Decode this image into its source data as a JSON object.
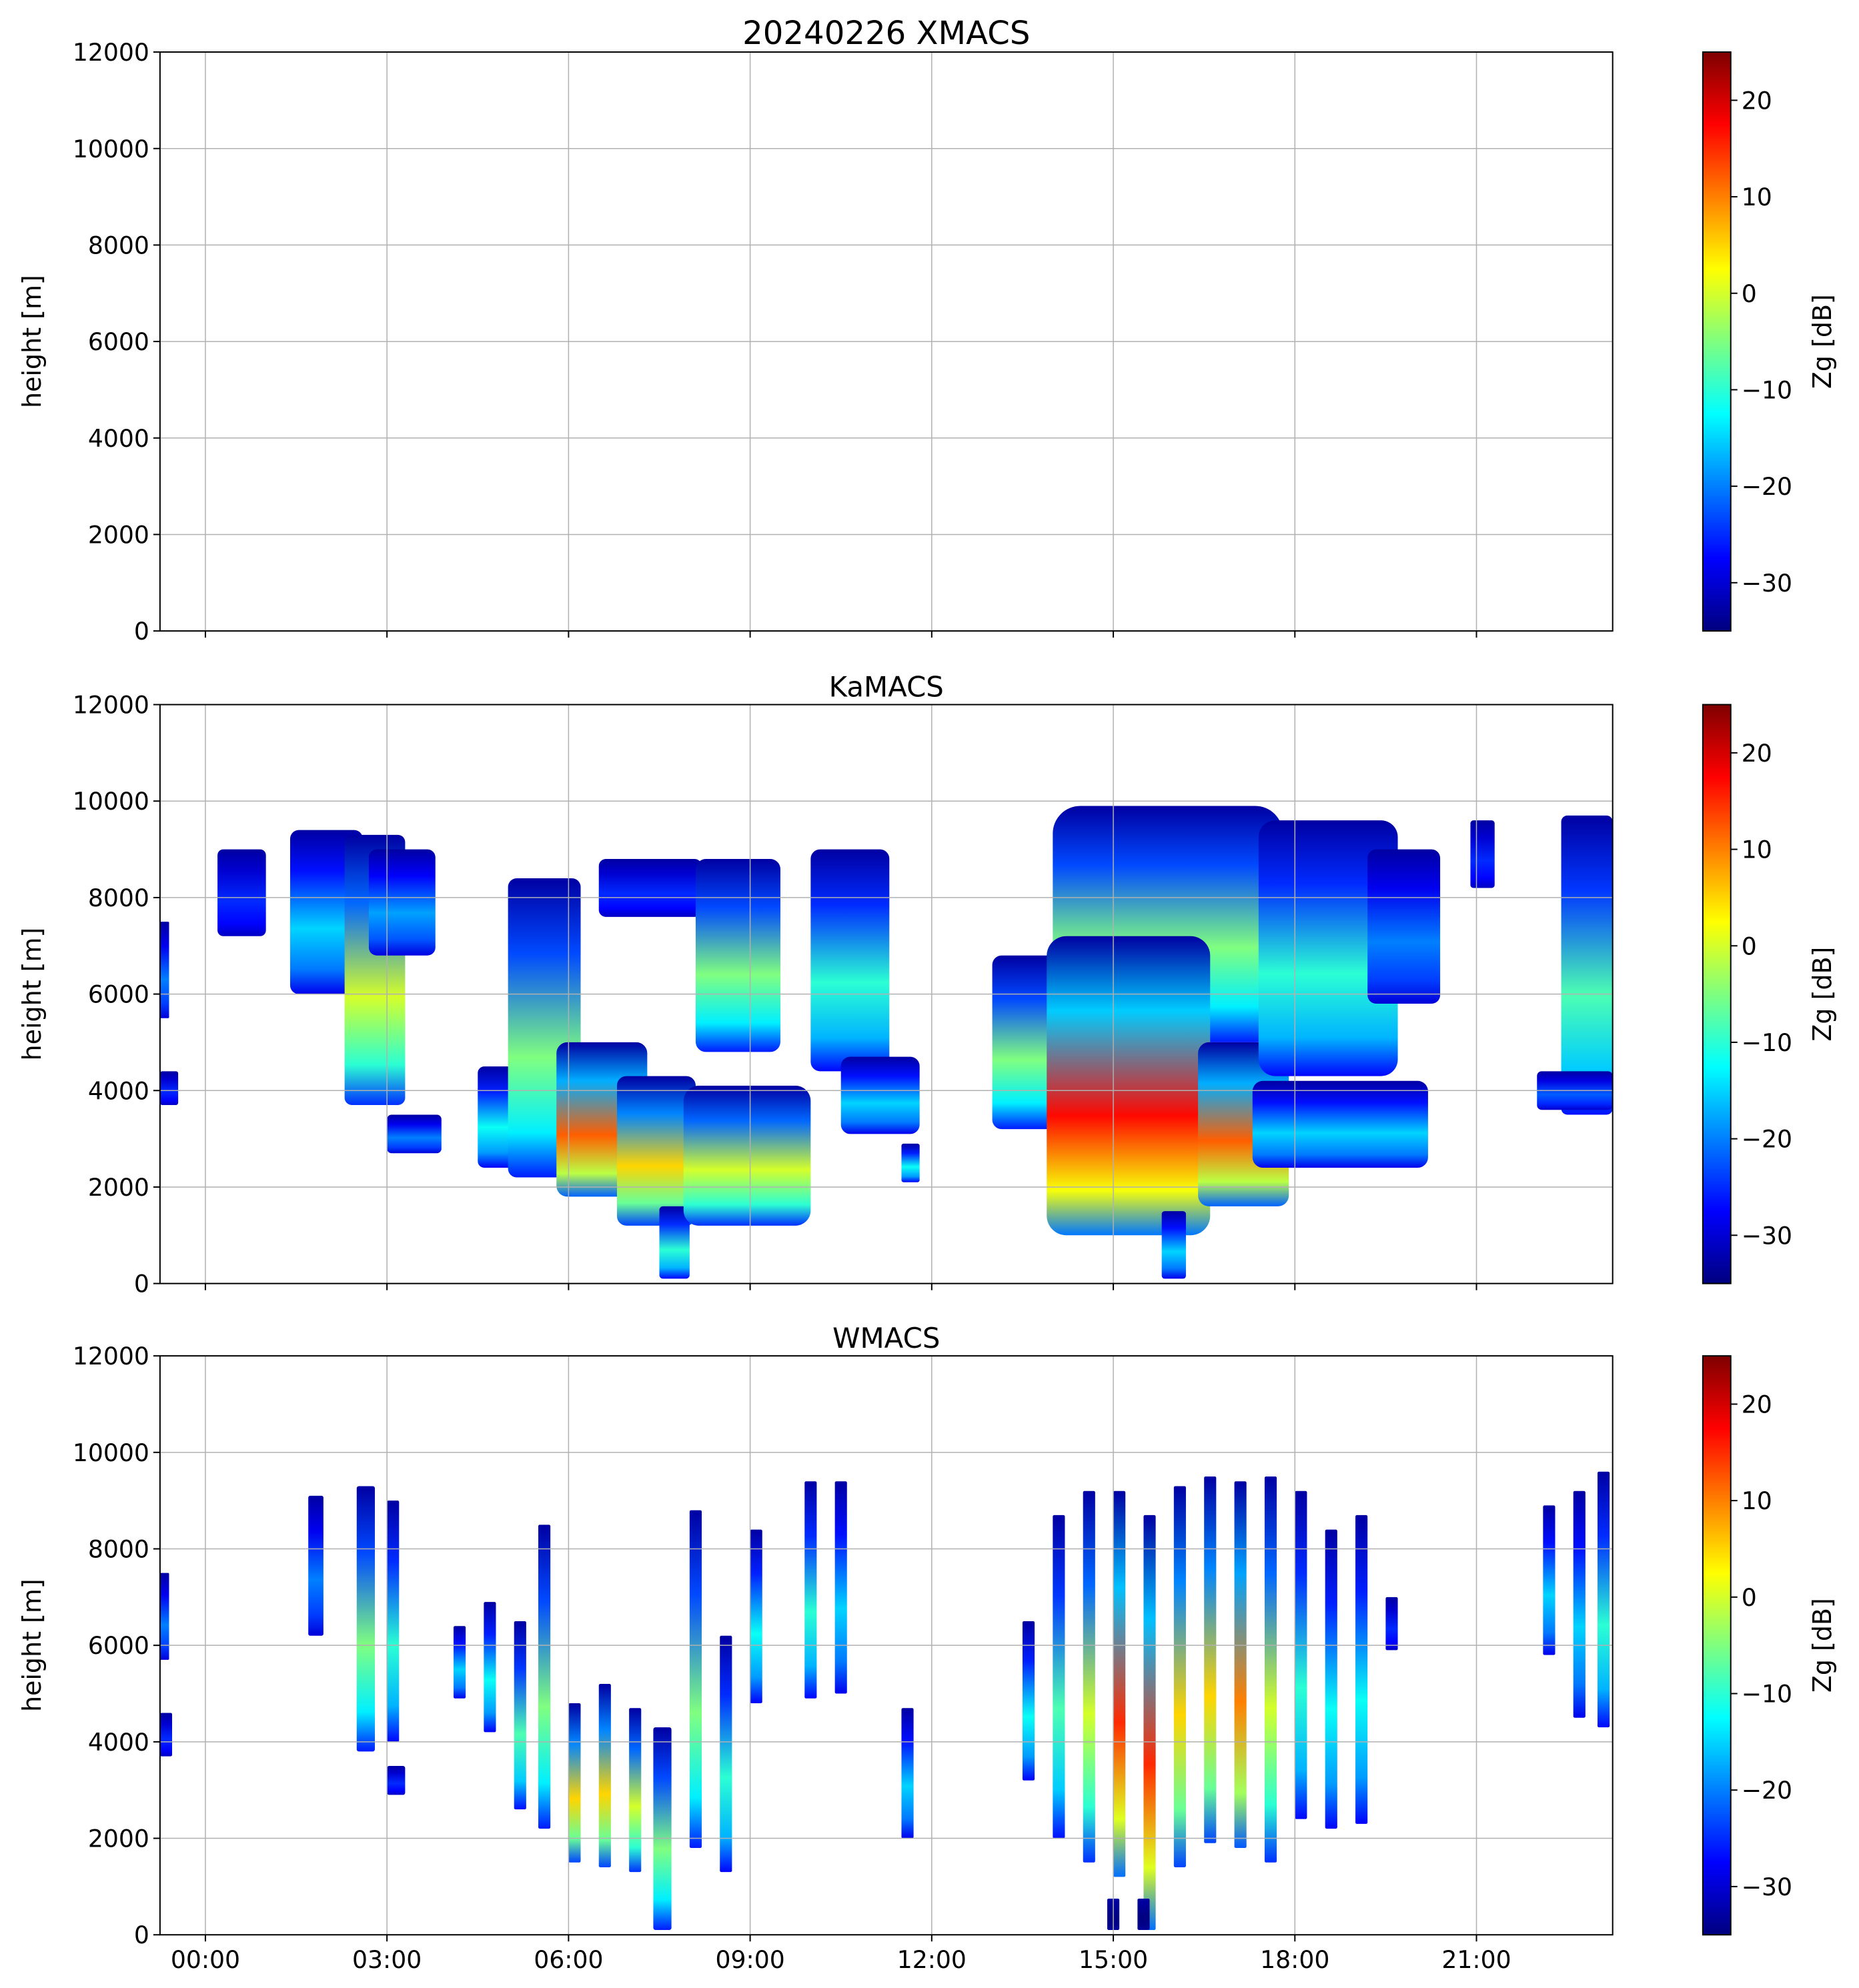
{
  "chart_data": [
    {
      "type": "heatmap",
      "title": "20240226 XMACS",
      "ylabel": "height [m]",
      "ylim": [
        0,
        12000
      ],
      "yticks": [
        0,
        2000,
        4000,
        6000,
        8000,
        10000,
        12000
      ],
      "xlim_hours": [
        -0.75,
        23.25
      ],
      "xticks_hours": [
        0,
        3,
        6,
        9,
        12,
        15,
        18,
        21
      ],
      "xtick_labels": [
        "00:00",
        "03:00",
        "06:00",
        "09:00",
        "12:00",
        "15:00",
        "18:00",
        "21:00"
      ],
      "grid": true,
      "colorbar": {
        "label": "Zg [dB]",
        "range": [
          -35,
          25
        ],
        "ticks": [
          -30,
          -20,
          -10,
          0,
          10,
          20
        ]
      },
      "echoes": []
    },
    {
      "type": "heatmap",
      "title": "KaMACS",
      "ylabel": "height [m]",
      "ylim": [
        0,
        12000
      ],
      "yticks": [
        0,
        2000,
        4000,
        6000,
        8000,
        10000,
        12000
      ],
      "xlim_hours": [
        -0.75,
        23.25
      ],
      "xticks_hours": [
        0,
        3,
        6,
        9,
        12,
        15,
        18,
        21
      ],
      "xtick_labels": [
        "00:00",
        "03:00",
        "06:00",
        "09:00",
        "12:00",
        "15:00",
        "18:00",
        "21:00"
      ],
      "grid": true,
      "colorbar": {
        "label": "Zg [dB]",
        "range": [
          -35,
          25
        ],
        "ticks": [
          -30,
          -20,
          -10,
          0,
          10,
          20
        ]
      },
      "echoes": [
        {
          "time": [
            -0.75,
            -0.45
          ],
          "height": [
            3700,
            4400
          ],
          "zmax": -25
        },
        {
          "time": [
            -0.75,
            -0.6
          ],
          "height": [
            5500,
            7500
          ],
          "zmax": -20
        },
        {
          "time": [
            0.2,
            1.0
          ],
          "height": [
            7200,
            9000
          ],
          "zmax": -25
        },
        {
          "time": [
            1.4,
            2.6
          ],
          "height": [
            6000,
            9400
          ],
          "zmax": -15
        },
        {
          "time": [
            2.3,
            3.3
          ],
          "height": [
            3700,
            9300
          ],
          "zmax": 0
        },
        {
          "time": [
            2.7,
            3.8
          ],
          "height": [
            6800,
            9000
          ],
          "zmax": -18
        },
        {
          "time": [
            3.0,
            3.9
          ],
          "height": [
            2700,
            3500
          ],
          "zmax": -20
        },
        {
          "time": [
            4.5,
            5.4
          ],
          "height": [
            2400,
            4500
          ],
          "zmax": -12
        },
        {
          "time": [
            5.0,
            6.2
          ],
          "height": [
            2200,
            8400
          ],
          "zmax": -5
        },
        {
          "time": [
            5.8,
            7.3
          ],
          "height": [
            1800,
            5000
          ],
          "zmax": 12
        },
        {
          "time": [
            6.8,
            8.1
          ],
          "height": [
            1200,
            4300
          ],
          "zmax": 5
        },
        {
          "time": [
            7.5,
            8.0
          ],
          "height": [
            100,
            1600
          ],
          "zmax": -10
        },
        {
          "time": [
            6.5,
            8.2
          ],
          "height": [
            7600,
            8800
          ],
          "zmax": -25
        },
        {
          "time": [
            8.1,
            9.5
          ],
          "height": [
            4800,
            8800
          ],
          "zmax": -5
        },
        {
          "time": [
            7.9,
            10.0
          ],
          "height": [
            1200,
            4100
          ],
          "zmax": 0
        },
        {
          "time": [
            10.0,
            11.3
          ],
          "height": [
            4400,
            9000
          ],
          "zmax": -10
        },
        {
          "time": [
            10.5,
            11.8
          ],
          "height": [
            3100,
            4700
          ],
          "zmax": -15
        },
        {
          "time": [
            11.5,
            11.8
          ],
          "height": [
            2100,
            2900
          ],
          "zmax": -12
        },
        {
          "time": [
            13.0,
            14.3
          ],
          "height": [
            3200,
            6800
          ],
          "zmax": -5
        },
        {
          "time": [
            14.0,
            17.8
          ],
          "height": [
            5000,
            9900
          ],
          "zmax": -5
        },
        {
          "time": [
            13.9,
            16.6
          ],
          "height": [
            1000,
            7200
          ],
          "zmax": 17
        },
        {
          "time": [
            16.4,
            17.9
          ],
          "height": [
            1600,
            5000
          ],
          "zmax": 12
        },
        {
          "time": [
            15.8,
            16.2
          ],
          "height": [
            100,
            1500
          ],
          "zmax": -15
        },
        {
          "time": [
            17.4,
            19.7
          ],
          "height": [
            4300,
            9600
          ],
          "zmax": -10
        },
        {
          "time": [
            17.3,
            20.2
          ],
          "height": [
            2400,
            4200
          ],
          "zmax": -15
        },
        {
          "time": [
            19.2,
            20.4
          ],
          "height": [
            5800,
            9000
          ],
          "zmax": -20
        },
        {
          "time": [
            20.9,
            21.3
          ],
          "height": [
            8200,
            9600
          ],
          "zmax": -25
        },
        {
          "time": [
            22.4,
            23.25
          ],
          "height": [
            3500,
            9700
          ],
          "zmax": -8
        },
        {
          "time": [
            22.0,
            23.25
          ],
          "height": [
            3600,
            4400
          ],
          "zmax": -22
        }
      ]
    },
    {
      "type": "heatmap",
      "title": "WMACS",
      "ylabel": "height [m]",
      "ylim": [
        0,
        12000
      ],
      "yticks": [
        0,
        2000,
        4000,
        6000,
        8000,
        10000,
        12000
      ],
      "xlim_hours": [
        -0.75,
        23.25
      ],
      "xticks_hours": [
        0,
        3,
        6,
        9,
        12,
        15,
        18,
        21
      ],
      "xtick_labels": [
        "00:00",
        "03:00",
        "06:00",
        "09:00",
        "12:00",
        "15:00",
        "18:00",
        "21:00"
      ],
      "grid": true,
      "colorbar": {
        "label": "Zg [dB]",
        "range": [
          -35,
          25
        ],
        "ticks": [
          -30,
          -20,
          -10,
          0,
          10,
          20
        ]
      },
      "echoes": [
        {
          "time": [
            -0.75,
            -0.55
          ],
          "height": [
            3700,
            4600
          ],
          "zmax": -25
        },
        {
          "time": [
            -0.75,
            -0.6
          ],
          "height": [
            5700,
            7500
          ],
          "zmax": -20
        },
        {
          "time": [
            1.7,
            1.95
          ],
          "height": [
            6200,
            9100
          ],
          "zmax": -20
        },
        {
          "time": [
            2.5,
            2.8
          ],
          "height": [
            3800,
            9300
          ],
          "zmax": -5
        },
        {
          "time": [
            3.0,
            3.2
          ],
          "height": [
            4000,
            9000
          ],
          "zmax": -10
        },
        {
          "time": [
            3.0,
            3.3
          ],
          "height": [
            2900,
            3500
          ],
          "zmax": -25
        },
        {
          "time": [
            4.1,
            4.3
          ],
          "height": [
            4900,
            6400
          ],
          "zmax": -15
        },
        {
          "time": [
            4.6,
            4.8
          ],
          "height": [
            4200,
            6900
          ],
          "zmax": -12
        },
        {
          "time": [
            5.1,
            5.3
          ],
          "height": [
            2600,
            6500
          ],
          "zmax": -8
        },
        {
          "time": [
            5.5,
            5.7
          ],
          "height": [
            2200,
            8500
          ],
          "zmax": -5
        },
        {
          "time": [
            6.0,
            6.2
          ],
          "height": [
            1500,
            4800
          ],
          "zmax": 5
        },
        {
          "time": [
            6.5,
            6.7
          ],
          "height": [
            1400,
            5200
          ],
          "zmax": 5
        },
        {
          "time": [
            7.0,
            7.2
          ],
          "height": [
            1300,
            4700
          ],
          "zmax": 0
        },
        {
          "time": [
            7.4,
            7.7
          ],
          "height": [
            100,
            4300
          ],
          "zmax": -5
        },
        {
          "time": [
            8.0,
            8.2
          ],
          "height": [
            1800,
            8800
          ],
          "zmax": -5
        },
        {
          "time": [
            8.5,
            8.7
          ],
          "height": [
            1300,
            6200
          ],
          "zmax": -10
        },
        {
          "time": [
            9.0,
            9.2
          ],
          "height": [
            4800,
            8400
          ],
          "zmax": -12
        },
        {
          "time": [
            9.9,
            10.1
          ],
          "height": [
            4900,
            9400
          ],
          "zmax": -10
        },
        {
          "time": [
            10.4,
            10.6
          ],
          "height": [
            5000,
            9400
          ],
          "zmax": -15
        },
        {
          "time": [
            11.5,
            11.7
          ],
          "height": [
            2000,
            4700
          ],
          "zmax": -15
        },
        {
          "time": [
            13.5,
            13.7
          ],
          "height": [
            3200,
            6500
          ],
          "zmax": -12
        },
        {
          "time": [
            14.0,
            14.2
          ],
          "height": [
            2000,
            8700
          ],
          "zmax": -8
        },
        {
          "time": [
            14.5,
            14.7
          ],
          "height": [
            1500,
            9200
          ],
          "zmax": 0
        },
        {
          "time": [
            15.0,
            15.2
          ],
          "height": [
            1200,
            9200
          ],
          "zmax": 15
        },
        {
          "time": [
            15.5,
            15.7
          ],
          "height": [
            100,
            8700
          ],
          "zmax": 15
        },
        {
          "time": [
            16.0,
            16.2
          ],
          "height": [
            1400,
            9300
          ],
          "zmax": 5
        },
        {
          "time": [
            16.5,
            16.7
          ],
          "height": [
            1900,
            9500
          ],
          "zmax": 5
        },
        {
          "time": [
            17.0,
            17.2
          ],
          "height": [
            1800,
            9400
          ],
          "zmax": 10
        },
        {
          "time": [
            17.5,
            17.7
          ],
          "height": [
            1500,
            9500
          ],
          "zmax": 0
        },
        {
          "time": [
            18.0,
            18.2
          ],
          "height": [
            2400,
            9200
          ],
          "zmax": -10
        },
        {
          "time": [
            18.5,
            18.7
          ],
          "height": [
            2200,
            8400
          ],
          "zmax": -12
        },
        {
          "time": [
            19.0,
            19.2
          ],
          "height": [
            2300,
            8700
          ],
          "zmax": -12
        },
        {
          "time": [
            19.5,
            19.7
          ],
          "height": [
            5900,
            7000
          ],
          "zmax": -25
        },
        {
          "time": [
            22.1,
            22.3
          ],
          "height": [
            5800,
            8900
          ],
          "zmax": -15
        },
        {
          "time": [
            22.6,
            22.8
          ],
          "height": [
            4500,
            9200
          ],
          "zmax": -15
        },
        {
          "time": [
            23.0,
            23.2
          ],
          "height": [
            4300,
            9600
          ],
          "zmax": -10
        },
        {
          "time": [
            14.9,
            15.1
          ],
          "height": [
            100,
            750
          ],
          "zmax": -35
        },
        {
          "time": [
            15.4,
            15.6
          ],
          "height": [
            100,
            750
          ],
          "zmax": -35
        }
      ]
    }
  ]
}
